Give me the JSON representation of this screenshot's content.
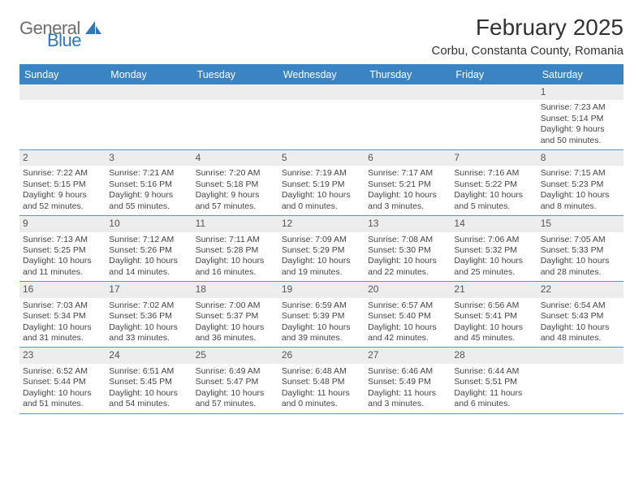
{
  "logo": {
    "general": "General",
    "blue": "Blue"
  },
  "title": "February 2025",
  "location": "Corbu, Constanta County, Romania",
  "colors": {
    "header_bar": "#3a84c4",
    "row_divider": "#5a94c4",
    "daynum_band_bg": "#ededed",
    "text": "#333333",
    "logo_grey": "#6d6d6d",
    "logo_blue": "#2f77bb"
  },
  "dow": [
    "Sunday",
    "Monday",
    "Tuesday",
    "Wednesday",
    "Thursday",
    "Friday",
    "Saturday"
  ],
  "weeks": [
    [
      null,
      null,
      null,
      null,
      null,
      null,
      {
        "n": "1",
        "sr": "7:23 AM",
        "ss": "5:14 PM",
        "dl": "9 hours and 50 minutes."
      }
    ],
    [
      {
        "n": "2",
        "sr": "7:22 AM",
        "ss": "5:15 PM",
        "dl": "9 hours and 52 minutes."
      },
      {
        "n": "3",
        "sr": "7:21 AM",
        "ss": "5:16 PM",
        "dl": "9 hours and 55 minutes."
      },
      {
        "n": "4",
        "sr": "7:20 AM",
        "ss": "5:18 PM",
        "dl": "9 hours and 57 minutes."
      },
      {
        "n": "5",
        "sr": "7:19 AM",
        "ss": "5:19 PM",
        "dl": "10 hours and 0 minutes."
      },
      {
        "n": "6",
        "sr": "7:17 AM",
        "ss": "5:21 PM",
        "dl": "10 hours and 3 minutes."
      },
      {
        "n": "7",
        "sr": "7:16 AM",
        "ss": "5:22 PM",
        "dl": "10 hours and 5 minutes."
      },
      {
        "n": "8",
        "sr": "7:15 AM",
        "ss": "5:23 PM",
        "dl": "10 hours and 8 minutes."
      }
    ],
    [
      {
        "n": "9",
        "sr": "7:13 AM",
        "ss": "5:25 PM",
        "dl": "10 hours and 11 minutes."
      },
      {
        "n": "10",
        "sr": "7:12 AM",
        "ss": "5:26 PM",
        "dl": "10 hours and 14 minutes."
      },
      {
        "n": "11",
        "sr": "7:11 AM",
        "ss": "5:28 PM",
        "dl": "10 hours and 16 minutes."
      },
      {
        "n": "12",
        "sr": "7:09 AM",
        "ss": "5:29 PM",
        "dl": "10 hours and 19 minutes."
      },
      {
        "n": "13",
        "sr": "7:08 AM",
        "ss": "5:30 PM",
        "dl": "10 hours and 22 minutes."
      },
      {
        "n": "14",
        "sr": "7:06 AM",
        "ss": "5:32 PM",
        "dl": "10 hours and 25 minutes."
      },
      {
        "n": "15",
        "sr": "7:05 AM",
        "ss": "5:33 PM",
        "dl": "10 hours and 28 minutes."
      }
    ],
    [
      {
        "n": "16",
        "sr": "7:03 AM",
        "ss": "5:34 PM",
        "dl": "10 hours and 31 minutes."
      },
      {
        "n": "17",
        "sr": "7:02 AM",
        "ss": "5:36 PM",
        "dl": "10 hours and 33 minutes."
      },
      {
        "n": "18",
        "sr": "7:00 AM",
        "ss": "5:37 PM",
        "dl": "10 hours and 36 minutes."
      },
      {
        "n": "19",
        "sr": "6:59 AM",
        "ss": "5:39 PM",
        "dl": "10 hours and 39 minutes."
      },
      {
        "n": "20",
        "sr": "6:57 AM",
        "ss": "5:40 PM",
        "dl": "10 hours and 42 minutes."
      },
      {
        "n": "21",
        "sr": "6:56 AM",
        "ss": "5:41 PM",
        "dl": "10 hours and 45 minutes."
      },
      {
        "n": "22",
        "sr": "6:54 AM",
        "ss": "5:43 PM",
        "dl": "10 hours and 48 minutes."
      }
    ],
    [
      {
        "n": "23",
        "sr": "6:52 AM",
        "ss": "5:44 PM",
        "dl": "10 hours and 51 minutes."
      },
      {
        "n": "24",
        "sr": "6:51 AM",
        "ss": "5:45 PM",
        "dl": "10 hours and 54 minutes."
      },
      {
        "n": "25",
        "sr": "6:49 AM",
        "ss": "5:47 PM",
        "dl": "10 hours and 57 minutes."
      },
      {
        "n": "26",
        "sr": "6:48 AM",
        "ss": "5:48 PM",
        "dl": "11 hours and 0 minutes."
      },
      {
        "n": "27",
        "sr": "6:46 AM",
        "ss": "5:49 PM",
        "dl": "11 hours and 3 minutes."
      },
      {
        "n": "28",
        "sr": "6:44 AM",
        "ss": "5:51 PM",
        "dl": "11 hours and 6 minutes."
      },
      null
    ]
  ],
  "labels": {
    "sunrise": "Sunrise: ",
    "sunset": "Sunset: ",
    "daylight": "Daylight: "
  }
}
